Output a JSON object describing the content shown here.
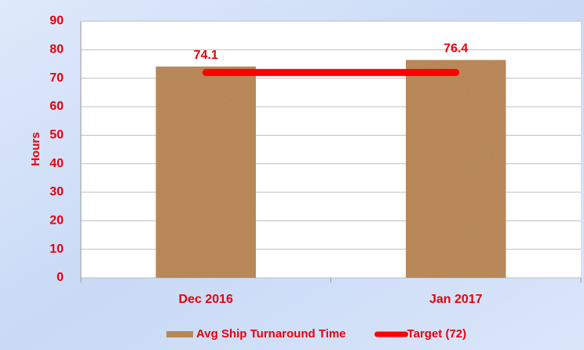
{
  "chart_data": {
    "type": "bar",
    "y_label": "Hours",
    "categories": [
      "Dec 2016",
      "Jan 2017"
    ],
    "series": [
      {
        "name": "Avg Ship Turnaround Time",
        "type": "bar",
        "color": "#b98557",
        "values": [
          74.1,
          76.4
        ]
      },
      {
        "name": "Target (72)",
        "type": "line",
        "color": "#ff0000",
        "values": [
          72,
          72
        ]
      }
    ],
    "ylim": [
      0,
      90
    ],
    "yticks": [
      0,
      10,
      20,
      30,
      40,
      50,
      60,
      70,
      80,
      90
    ],
    "grid": true,
    "legend": "bottom"
  }
}
